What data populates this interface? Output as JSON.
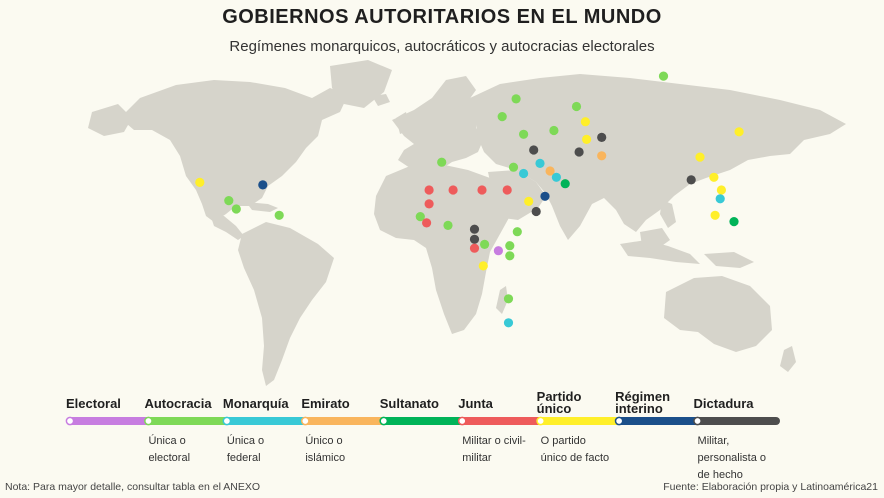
{
  "header": {
    "title": "GOBIERNOS AUTORITARIOS EN EL MUNDO",
    "subtitle": "Regímenes monarquicos, autocráticos y autocracias electorales"
  },
  "colors": {
    "land": "#d6d4cb",
    "background": "#fbfaf1"
  },
  "chart_data": {
    "type": "scatter",
    "categories": [
      {
        "name": "Electoral",
        "color": "#c77de0",
        "description": []
      },
      {
        "name": "Autocracia",
        "color": "#7ed957",
        "description": [
          "Única o",
          "electoral"
        ]
      },
      {
        "name": "Monarquía",
        "color": "#38c9d6",
        "description": [
          "Única o",
          "federal"
        ]
      },
      {
        "name": "Emirato",
        "color": "#f9b55d",
        "description": [
          "Único o",
          "islámico"
        ]
      },
      {
        "name": "Sultanato",
        "color": "#00b358",
        "description": []
      },
      {
        "name": "Junta",
        "color": "#ee5b5b",
        "description": [
          "Militar o civil-",
          "militar"
        ]
      },
      {
        "name": "Partido único",
        "color": "#ffef2a",
        "description": [
          "O partido",
          "único de facto"
        ]
      },
      {
        "name": "Régimen interino",
        "color": "#1b4f8a",
        "description": []
      },
      {
        "name": "Dictadura",
        "color": "#4d4d4d",
        "description": [
          "Militar,",
          "personalista o",
          "de hecho"
        ]
      }
    ],
    "points": [
      {
        "lon": -97.5,
        "lat": 20.0,
        "category": "Partido único"
      },
      {
        "lon": -72.5,
        "lat": 19.0,
        "category": "Régimen interino"
      },
      {
        "lon": -86.0,
        "lat": 12.8,
        "category": "Autocracia"
      },
      {
        "lon": -83.0,
        "lat": 9.5,
        "category": "Autocracia"
      },
      {
        "lon": -66.0,
        "lat": 7.0,
        "category": "Autocracia"
      },
      {
        "lon": 86.5,
        "lat": 62.0,
        "category": "Autocracia"
      },
      {
        "lon": 28.0,
        "lat": 53.0,
        "category": "Autocracia"
      },
      {
        "lon": 22.5,
        "lat": 46.0,
        "category": "Autocracia"
      },
      {
        "lon": 52.0,
        "lat": 50.0,
        "category": "Autocracia"
      },
      {
        "lon": 55.5,
        "lat": 44.0,
        "category": "Partido único"
      },
      {
        "lon": 43.0,
        "lat": 40.5,
        "category": "Autocracia"
      },
      {
        "lon": 31.0,
        "lat": 39.0,
        "category": "Autocracia"
      },
      {
        "lon": 56.0,
        "lat": 37.0,
        "category": "Partido único"
      },
      {
        "lon": 62.0,
        "lat": 37.8,
        "category": "Dictadura"
      },
      {
        "lon": 35.0,
        "lat": 32.8,
        "category": "Dictadura"
      },
      {
        "lon": 37.5,
        "lat": 27.5,
        "category": "Monarquía"
      },
      {
        "lon": 41.5,
        "lat": 24.5,
        "category": "Emirato"
      },
      {
        "lon": 31.0,
        "lat": 23.5,
        "category": "Monarquía"
      },
      {
        "lon": 44.0,
        "lat": 22.0,
        "category": "Monarquía"
      },
      {
        "lon": 47.5,
        "lat": 19.5,
        "category": "Sultanato"
      },
      {
        "lon": 53.0,
        "lat": 32.0,
        "category": "Dictadura"
      },
      {
        "lon": 62.0,
        "lat": 30.5,
        "category": "Emirato"
      },
      {
        "lon": 27.0,
        "lat": 26.0,
        "category": "Autocracia"
      },
      {
        "lon": -1.5,
        "lat": 28.0,
        "category": "Autocracia"
      },
      {
        "lon": 39.5,
        "lat": 14.5,
        "category": "Régimen interino"
      },
      {
        "lon": 33.0,
        "lat": 12.5,
        "category": "Partido único"
      },
      {
        "lon": 36.0,
        "lat": 8.5,
        "category": "Dictadura"
      },
      {
        "lon": -6.5,
        "lat": 17.0,
        "category": "Junta"
      },
      {
        "lon": 3.0,
        "lat": 17.0,
        "category": "Junta"
      },
      {
        "lon": 14.5,
        "lat": 17.0,
        "category": "Junta"
      },
      {
        "lon": 24.5,
        "lat": 17.0,
        "category": "Junta"
      },
      {
        "lon": -6.5,
        "lat": 11.5,
        "category": "Junta"
      },
      {
        "lon": -10.0,
        "lat": 6.5,
        "category": "Autocracia"
      },
      {
        "lon": -7.5,
        "lat": 4.0,
        "category": "Junta"
      },
      {
        "lon": 1.0,
        "lat": 3.0,
        "category": "Autocracia"
      },
      {
        "lon": 11.5,
        "lat": 1.5,
        "category": "Dictadura"
      },
      {
        "lon": 11.5,
        "lat": -2.5,
        "category": "Dictadura"
      },
      {
        "lon": 11.5,
        "lat": -6.0,
        "category": "Junta"
      },
      {
        "lon": 15.5,
        "lat": -4.5,
        "category": "Autocracia"
      },
      {
        "lon": 21.0,
        "lat": -7.0,
        "category": "Electoral"
      },
      {
        "lon": 28.5,
        "lat": 0.5,
        "category": "Autocracia"
      },
      {
        "lon": 25.5,
        "lat": -5.0,
        "category": "Autocracia"
      },
      {
        "lon": 25.5,
        "lat": -9.0,
        "category": "Autocracia"
      },
      {
        "lon": 15.0,
        "lat": -13.0,
        "category": "Partido único"
      },
      {
        "lon": 25.0,
        "lat": -26.0,
        "category": "Autocracia"
      },
      {
        "lon": 25.0,
        "lat": -35.5,
        "category": "Monarquía"
      },
      {
        "lon": 116.5,
        "lat": 40.0,
        "category": "Partido único"
      },
      {
        "lon": 101.0,
        "lat": 30.0,
        "category": "Partido único"
      },
      {
        "lon": 106.5,
        "lat": 22.0,
        "category": "Partido único"
      },
      {
        "lon": 97.5,
        "lat": 21.0,
        "category": "Dictadura"
      },
      {
        "lon": 109.5,
        "lat": 17.0,
        "category": "Partido único"
      },
      {
        "lon": 109.0,
        "lat": 13.5,
        "category": "Monarquía"
      },
      {
        "lon": 107.0,
        "lat": 7.0,
        "category": "Partido único"
      },
      {
        "lon": 114.5,
        "lat": 4.5,
        "category": "Sultanato"
      }
    ]
  },
  "notes": {
    "left": "Nota: Para mayor detalle, consultar tabla en el ANEXO",
    "right": "Fuente: Elaboración propia y Latinoamérica21"
  }
}
